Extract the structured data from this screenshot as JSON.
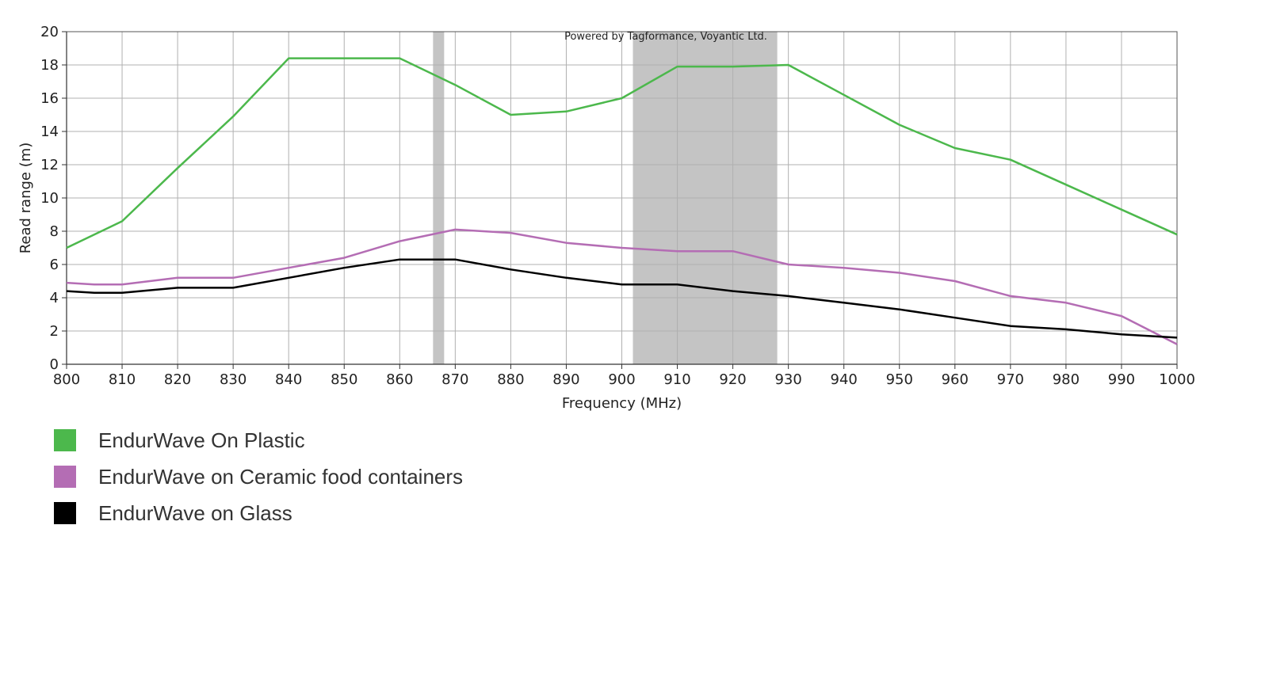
{
  "chart_data": {
    "type": "line",
    "watermark": "Powered by Tagformance, Voyantic Ltd.",
    "xlabel": "Frequency (MHz)",
    "ylabel": "Read range (m)",
    "xlim": [
      800,
      1000
    ],
    "ylim": [
      0,
      20
    ],
    "xticks": [
      "800",
      "810",
      "820",
      "830",
      "840",
      "850",
      "860",
      "870",
      "880",
      "890",
      "900",
      "910",
      "920",
      "930",
      "940",
      "950",
      "960",
      "970",
      "980",
      "990",
      "1000"
    ],
    "yticks": [
      "0",
      "2",
      "4",
      "6",
      "8",
      "10",
      "12",
      "14",
      "16",
      "18",
      "20"
    ],
    "grid": true,
    "shaded_bands": [
      [
        866,
        868
      ],
      [
        902,
        928
      ]
    ],
    "series": [
      {
        "name": "EndurWave On Plastic",
        "color": "#4cb84c",
        "x": [
          800,
          810,
          820,
          830,
          840,
          860,
          870,
          880,
          890,
          900,
          910,
          920,
          930,
          940,
          950,
          960,
          970,
          980,
          990,
          1000
        ],
        "y": [
          7.0,
          8.6,
          11.8,
          14.9,
          18.4,
          18.4,
          16.8,
          15.0,
          15.2,
          16.0,
          17.9,
          17.9,
          18.0,
          16.2,
          14.4,
          13.0,
          12.3,
          10.8,
          9.3,
          7.8
        ]
      },
      {
        "name": "EndurWave on Ceramic food containers",
        "color": "#b46db4",
        "x": [
          800,
          805,
          810,
          820,
          830,
          840,
          850,
          860,
          870,
          880,
          890,
          900,
          910,
          920,
          930,
          940,
          950,
          960,
          970,
          980,
          990,
          1000
        ],
        "y": [
          4.9,
          4.8,
          4.8,
          5.2,
          5.2,
          5.8,
          6.4,
          7.4,
          8.1,
          7.9,
          7.3,
          7.0,
          6.8,
          6.8,
          6.0,
          5.8,
          5.5,
          5.0,
          4.1,
          3.7,
          2.9,
          1.2
        ]
      },
      {
        "name": "EndurWave on Glass",
        "color": "#000000",
        "x": [
          800,
          805,
          810,
          820,
          830,
          840,
          850,
          860,
          870,
          880,
          890,
          900,
          910,
          920,
          930,
          940,
          950,
          960,
          970,
          980,
          990,
          1000
        ],
        "y": [
          4.4,
          4.3,
          4.3,
          4.6,
          4.6,
          5.2,
          5.8,
          6.3,
          6.3,
          5.7,
          5.2,
          4.8,
          4.8,
          4.4,
          4.1,
          3.7,
          3.3,
          2.8,
          2.3,
          2.1,
          1.8,
          1.6
        ]
      }
    ]
  },
  "legend": [
    {
      "label": "EndurWave On Plastic",
      "color": "#4cb84c"
    },
    {
      "label": "EndurWave on Ceramic food containers",
      "color": "#b46db4"
    },
    {
      "label": "EndurWave on Glass",
      "color": "#000000"
    }
  ]
}
